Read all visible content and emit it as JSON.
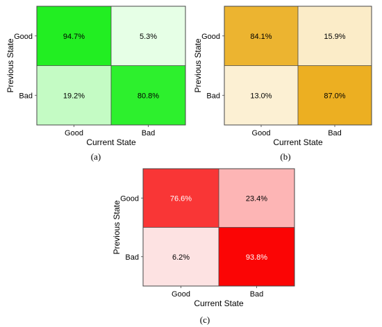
{
  "chart_data": [
    {
      "type": "heatmap",
      "panel_label": "(a)",
      "xlabel": "Current State",
      "ylabel": "Previous State",
      "x_categories": [
        "Good",
        "Bad"
      ],
      "y_categories": [
        "Good",
        "Bad"
      ],
      "values": [
        [
          "94.7%",
          "5.3%"
        ],
        [
          "19.2%",
          "80.8%"
        ]
      ],
      "numeric": [
        [
          94.7,
          5.3
        ],
        [
          19.2,
          80.8
        ]
      ],
      "cell_colors": [
        [
          "#22ee22",
          "#e6ffe6"
        ],
        [
          "#c4fbc4",
          "#2df02d"
        ]
      ],
      "text_colors": [
        [
          "#000000",
          "#000000"
        ],
        [
          "#000000",
          "#000000"
        ]
      ]
    },
    {
      "type": "heatmap",
      "panel_label": "(b)",
      "xlabel": "Current State",
      "ylabel": "Previous State",
      "x_categories": [
        "Good",
        "Bad"
      ],
      "y_categories": [
        "Good",
        "Bad"
      ],
      "values": [
        [
          "84.1%",
          "15.9%"
        ],
        [
          "13.0%",
          "87.0%"
        ]
      ],
      "numeric": [
        [
          84.1,
          15.9
        ],
        [
          13.0,
          87.0
        ]
      ],
      "cell_colors": [
        [
          "#ecb430",
          "#fbecc8"
        ],
        [
          "#fcf0d3",
          "#ecaf22"
        ]
      ],
      "text_colors": [
        [
          "#000000",
          "#000000"
        ],
        [
          "#000000",
          "#000000"
        ]
      ]
    },
    {
      "type": "heatmap",
      "panel_label": "(c)",
      "xlabel": "Current State",
      "ylabel": "Previous State",
      "x_categories": [
        "Good",
        "Bad"
      ],
      "y_categories": [
        "Good",
        "Bad"
      ],
      "values": [
        [
          "76.6%",
          "23.4%"
        ],
        [
          "6.2%",
          "93.8%"
        ]
      ],
      "numeric": [
        [
          76.6,
          23.4
        ],
        [
          6.2,
          93.8
        ]
      ],
      "cell_colors": [
        [
          "#f93636",
          "#fdb5b5"
        ],
        [
          "#fde2e2",
          "#fb0505"
        ]
      ],
      "text_colors": [
        [
          "#ffffff",
          "#000000"
        ],
        [
          "#000000",
          "#ffffff"
        ]
      ]
    }
  ]
}
